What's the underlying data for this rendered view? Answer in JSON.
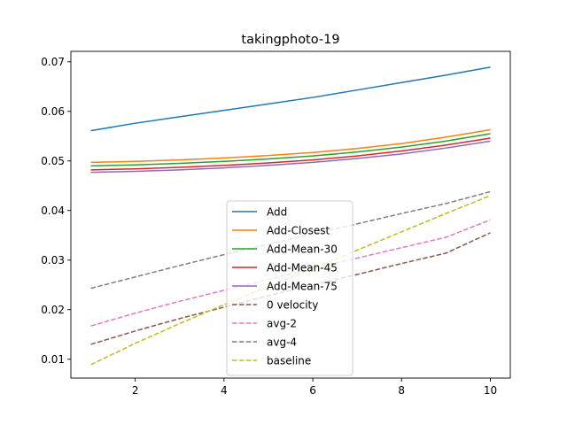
{
  "chart_data": {
    "type": "line",
    "title": "takingphoto-19",
    "xlabel": "",
    "ylabel": "",
    "xlim": [
      0.55,
      10.45
    ],
    "ylim": [
      0.0062,
      0.0721
    ],
    "xticks": [
      2,
      4,
      6,
      8,
      10
    ],
    "yticks": [
      0.01,
      0.02,
      0.03,
      0.04,
      0.05,
      0.06,
      0.07
    ],
    "xtick_labels": [
      "2",
      "4",
      "6",
      "8",
      "10"
    ],
    "ytick_labels": [
      "0.01",
      "0.02",
      "0.03",
      "0.04",
      "0.05",
      "0.06",
      "0.07"
    ],
    "grid": false,
    "legend_position": "lower center",
    "x": [
      1,
      2,
      3,
      4,
      5,
      6,
      7,
      8,
      9,
      10
    ],
    "series": [
      {
        "name": "Add",
        "color": "#1f77b4",
        "dash": "solid",
        "values": [
          0.0561,
          0.0576,
          0.0589,
          0.0602,
          0.0615,
          0.0628,
          0.0643,
          0.0658,
          0.0673,
          0.0689
        ]
      },
      {
        "name": "Add-Closest",
        "color": "#ff7f0e",
        "dash": "solid",
        "values": [
          0.0497,
          0.0499,
          0.0502,
          0.0506,
          0.0511,
          0.0517,
          0.0525,
          0.0535,
          0.0548,
          0.0563
        ]
      },
      {
        "name": "Add-Mean-30",
        "color": "#2ca02c",
        "dash": "solid",
        "values": [
          0.049,
          0.0492,
          0.0495,
          0.0499,
          0.0504,
          0.051,
          0.0518,
          0.0528,
          0.054,
          0.0555
        ]
      },
      {
        "name": "Add-Mean-45",
        "color": "#d62728",
        "dash": "solid",
        "values": [
          0.0482,
          0.0484,
          0.0487,
          0.0491,
          0.0496,
          0.0502,
          0.051,
          0.052,
          0.0532,
          0.0546
        ]
      },
      {
        "name": "Add-Mean-75",
        "color": "#9467bd",
        "dash": "solid",
        "values": [
          0.0477,
          0.0479,
          0.0482,
          0.0486,
          0.0491,
          0.0497,
          0.0505,
          0.0514,
          0.0526,
          0.054
        ]
      },
      {
        "name": "0 velocity",
        "color": "#8c564b",
        "dash": "dashed",
        "values": [
          0.013,
          0.0157,
          0.0182,
          0.0205,
          0.0228,
          0.025,
          0.0271,
          0.0293,
          0.0314,
          0.0355
        ]
      },
      {
        "name": "avg-2",
        "color": "#e377c2",
        "dash": "dashed",
        "values": [
          0.0167,
          0.0193,
          0.0217,
          0.0239,
          0.0261,
          0.0283,
          0.0304,
          0.0325,
          0.0346,
          0.0381
        ]
      },
      {
        "name": "avg-4",
        "color": "#7f7f7f",
        "dash": "dashed",
        "values": [
          0.0243,
          0.0266,
          0.0289,
          0.0311,
          0.0332,
          0.0353,
          0.0373,
          0.0394,
          0.0414,
          0.0438
        ]
      },
      {
        "name": "baseline",
        "color": "#bcbd22",
        "dash": "dashed",
        "values": [
          0.0089,
          0.0132,
          0.0172,
          0.021,
          0.0247,
          0.0283,
          0.032,
          0.0357,
          0.0394,
          0.043
        ]
      }
    ]
  }
}
